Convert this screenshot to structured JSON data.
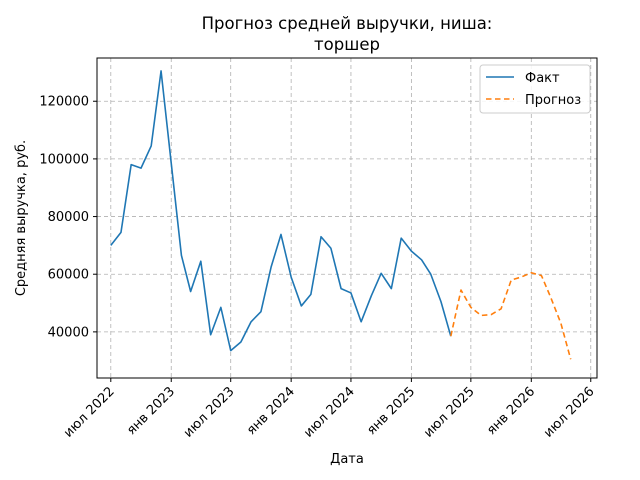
{
  "chart_data": {
    "type": "line",
    "title_lines": [
      "Прогноз средней выручки, ниша:",
      "торшер"
    ],
    "xlabel": "Дата",
    "ylabel": "Средняя выручка, руб.",
    "x_axis": {
      "range": [
        "2022-05-20",
        "2026-07-20"
      ],
      "ticks": [
        {
          "date": "2022-07-01",
          "label": "июл 2022"
        },
        {
          "date": "2023-01-01",
          "label": "янв 2023"
        },
        {
          "date": "2023-07-01",
          "label": "июл 2023"
        },
        {
          "date": "2024-01-01",
          "label": "янв 2024"
        },
        {
          "date": "2024-07-01",
          "label": "июл 2024"
        },
        {
          "date": "2025-01-01",
          "label": "янв 2025"
        },
        {
          "date": "2025-07-01",
          "label": "июл 2025"
        },
        {
          "date": "2026-01-01",
          "label": "янв 2026"
        },
        {
          "date": "2026-07-01",
          "label": "июл 2026"
        }
      ]
    },
    "y_axis": {
      "range": [
        24000,
        135000
      ],
      "ticks": [
        40000,
        60000,
        80000,
        100000,
        120000
      ]
    },
    "grid": true,
    "legend": {
      "position": "top-right"
    },
    "series": [
      {
        "name": "Факт",
        "color": "#1f77b4",
        "style": "solid",
        "points": [
          [
            "2022-07-01",
            70000
          ],
          [
            "2022-08-01",
            74500
          ],
          [
            "2022-09-01",
            98000
          ],
          [
            "2022-10-01",
            96800
          ],
          [
            "2022-11-01",
            104500
          ],
          [
            "2022-12-01",
            130500
          ],
          [
            "2023-01-01",
            98500
          ],
          [
            "2023-02-01",
            66500
          ],
          [
            "2023-03-01",
            54000
          ],
          [
            "2023-04-01",
            64500
          ],
          [
            "2023-05-01",
            39000
          ],
          [
            "2023-06-01",
            48500
          ],
          [
            "2023-07-01",
            33500
          ],
          [
            "2023-08-01",
            36500
          ],
          [
            "2023-09-01",
            43500
          ],
          [
            "2023-10-01",
            47000
          ],
          [
            "2023-11-01",
            62500
          ],
          [
            "2023-12-01",
            73800
          ],
          [
            "2024-01-01",
            59000
          ],
          [
            "2024-02-01",
            49000
          ],
          [
            "2024-03-01",
            53000
          ],
          [
            "2024-04-01",
            73000
          ],
          [
            "2024-05-01",
            69000
          ],
          [
            "2024-06-01",
            55000
          ],
          [
            "2024-07-01",
            53500
          ],
          [
            "2024-08-01",
            43500
          ],
          [
            "2024-09-01",
            52500
          ],
          [
            "2024-10-01",
            60300
          ],
          [
            "2024-11-01",
            55000
          ],
          [
            "2024-12-01",
            72500
          ],
          [
            "2025-01-01",
            68000
          ],
          [
            "2025-02-01",
            65000
          ],
          [
            "2025-03-01",
            60000
          ],
          [
            "2025-04-01",
            50500
          ],
          [
            "2025-05-01",
            38500
          ]
        ]
      },
      {
        "name": "Прогноз",
        "color": "#ff7f0e",
        "style": "dashed",
        "points": [
          [
            "2025-05-01",
            38500
          ],
          [
            "2025-06-01",
            54500
          ],
          [
            "2025-07-01",
            48500
          ],
          [
            "2025-08-01",
            45700
          ],
          [
            "2025-09-01",
            46000
          ],
          [
            "2025-10-01",
            48000
          ],
          [
            "2025-11-01",
            58000
          ],
          [
            "2025-12-01",
            59000
          ],
          [
            "2026-01-01",
            60500
          ],
          [
            "2026-02-01",
            59500
          ],
          [
            "2026-03-01",
            52000
          ],
          [
            "2026-04-01",
            43000
          ],
          [
            "2026-05-01",
            30500
          ]
        ]
      }
    ]
  }
}
